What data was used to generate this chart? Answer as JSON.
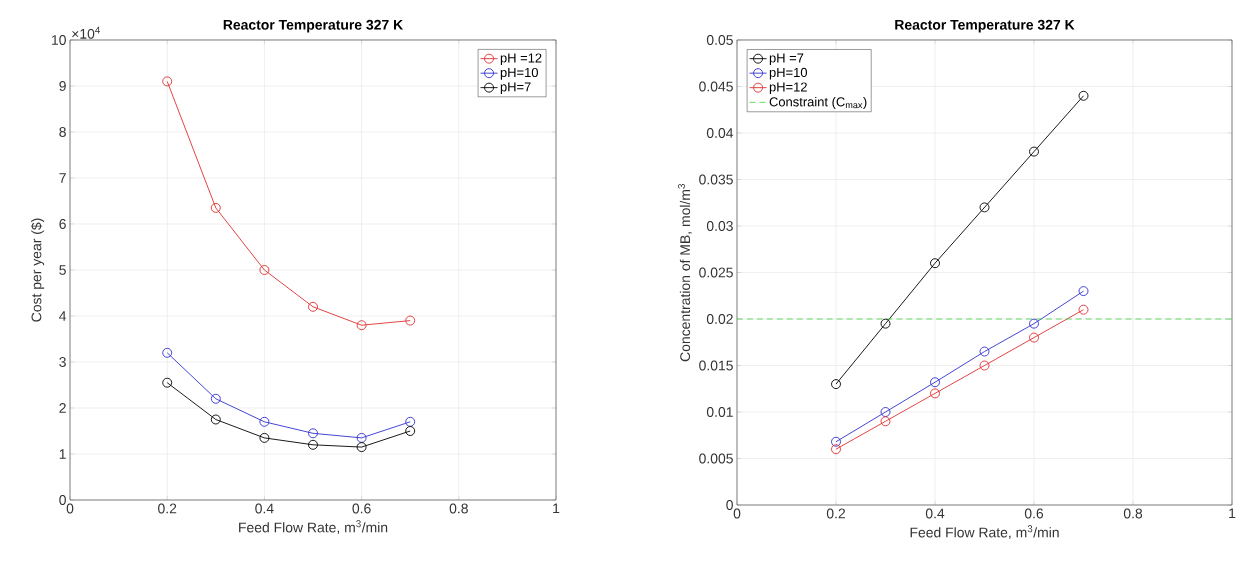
{
  "chart_data": [
    {
      "type": "line",
      "title": "Reactor Temperature 327 K",
      "xlabel": "Feed Flow Rate, m$^{3}$/min",
      "ylabel": "Cost per year ($)",
      "annotations": [
        "×10$^{4}$"
      ],
      "x": [
        0.2,
        0.3,
        0.4,
        0.5,
        0.6,
        0.7
      ],
      "series": [
        {
          "name": "pH =12",
          "color": "#e03030",
          "values": [
            9.1,
            6.35,
            5.0,
            4.2,
            3.8,
            3.9
          ]
        },
        {
          "name": "pH=10",
          "color": "#3030d0",
          "values": [
            3.2,
            2.2,
            1.7,
            1.45,
            1.35,
            1.7
          ]
        },
        {
          "name": "pH=7",
          "color": "#000000",
          "values": [
            2.55,
            1.75,
            1.35,
            1.2,
            1.15,
            1.5
          ]
        }
      ],
      "xlim": [
        0,
        1
      ],
      "xticks": [
        0,
        0.2,
        0.4,
        0.6,
        0.8,
        1
      ],
      "ylim": [
        0,
        10
      ],
      "yticks": [
        0,
        1,
        2,
        3,
        4,
        5,
        6,
        7,
        8,
        9,
        10
      ],
      "grid": true,
      "legend": "top right",
      "marker": "circle",
      "line_style": "solid"
    },
    {
      "type": "line",
      "title": "Reactor Temperature 327 K",
      "xlabel": "Feed Flow Rate, m$^{3}$/min",
      "ylabel": "Concentration of MB, mol/m$^{3}$",
      "x": [
        0.2,
        0.3,
        0.4,
        0.5,
        0.6,
        0.7
      ],
      "series": [
        {
          "name": "pH =7",
          "color": "#000000",
          "values": [
            0.013,
            0.0195,
            0.026,
            0.032,
            0.038,
            0.044
          ]
        },
        {
          "name": "pH=10",
          "color": "#3030d0",
          "values": [
            0.0068,
            0.01,
            0.0132,
            0.0165,
            0.0195,
            0.023
          ]
        },
        {
          "name": "pH=12",
          "color": "#e03030",
          "values": [
            0.006,
            0.009,
            0.012,
            0.015,
            0.018,
            0.021
          ]
        }
      ],
      "ref_lines": [
        {
          "axis": "y",
          "value": 0.02,
          "label": "Constraint (C$_{max}$)",
          "color": "#40d040",
          "line_style": "dashed"
        }
      ],
      "xlim": [
        0,
        1
      ],
      "xticks": [
        0,
        0.2,
        0.4,
        0.6,
        0.8,
        1
      ],
      "ylim": [
        0,
        0.05
      ],
      "yticks": [
        0,
        0.005,
        0.01,
        0.015,
        0.02,
        0.025,
        0.03,
        0.035,
        0.04,
        0.045,
        0.05
      ],
      "grid": true,
      "legend": "top left",
      "marker": "circle",
      "line_style": "solid"
    }
  ]
}
